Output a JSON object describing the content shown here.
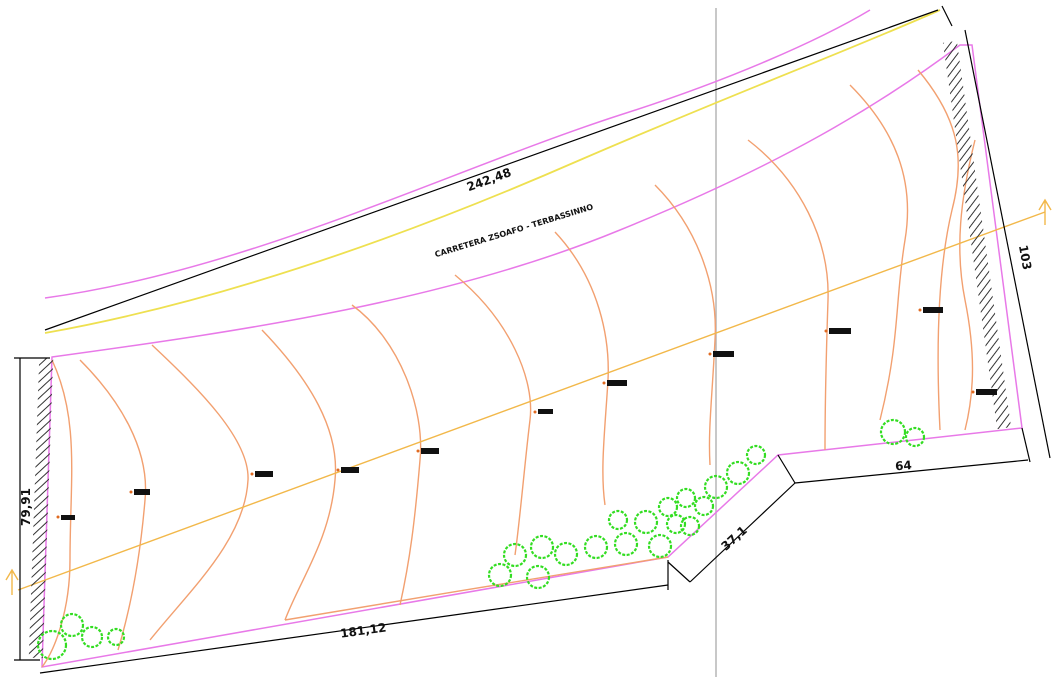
{
  "drawing": {
    "road_label": "CARRETERA ZSOAFO - TERBASSINNO",
    "dimensions": {
      "top": "242,48",
      "right": "103",
      "left": "79,91",
      "bottom": "181,12",
      "diagonal": "37,1",
      "bottom_right": "64"
    },
    "colors": {
      "parcel_boundary": "#e879e8",
      "road_line": "#f0e040",
      "contour": "#f0a060",
      "section_axis": "#f2b84a",
      "dimension_line": "#000000",
      "tree": "#33dd22",
      "vertical_guide": "#b0b0b0"
    },
    "markers": [
      "tree-symbol",
      "stake-marker",
      "retaining-wall-hatch",
      "section-arrow"
    ]
  }
}
